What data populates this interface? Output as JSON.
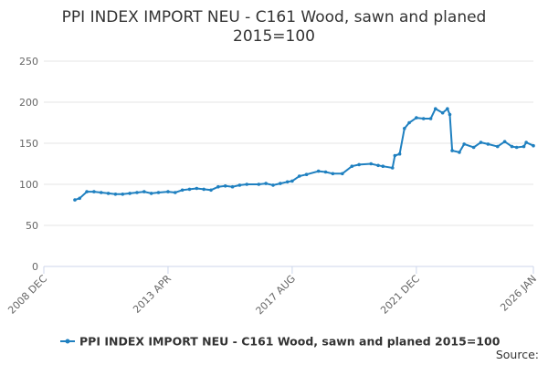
{
  "chart_data": {
    "type": "line",
    "title": "PPI INDEX IMPORT NEU - C161 Wood, sawn and planed",
    "subtitle": "2015=100",
    "source": "Source:",
    "x": [
      "2010-01",
      "2010-03",
      "2010-06",
      "2010-09",
      "2010-12",
      "2011-03",
      "2011-06",
      "2011-09",
      "2011-12",
      "2012-03",
      "2012-06",
      "2012-09",
      "2012-12",
      "2013-04",
      "2013-07",
      "2013-10",
      "2014-01",
      "2014-04",
      "2014-07",
      "2014-10",
      "2015-01",
      "2015-04",
      "2015-07",
      "2015-10",
      "2016-01",
      "2016-06",
      "2016-09",
      "2016-12",
      "2017-03",
      "2017-06",
      "2017-08",
      "2017-11",
      "2018-02",
      "2018-07",
      "2018-10",
      "2019-01",
      "2019-05",
      "2019-09",
      "2019-12",
      "2020-05",
      "2020-08",
      "2020-10",
      "2021-02",
      "2021-03",
      "2021-05",
      "2021-07",
      "2021-09",
      "2021-12",
      "2022-03",
      "2022-06",
      "2022-08",
      "2022-11",
      "2023-01",
      "2023-02",
      "2023-03",
      "2023-06",
      "2023-08",
      "2023-12",
      "2024-03",
      "2024-06",
      "2024-10",
      "2025-01",
      "2025-04",
      "2025-06",
      "2025-09",
      "2025-10",
      "2026-01"
    ],
    "series": [
      {
        "name": "PPI INDEX IMPORT NEU - C161 Wood, sawn and planed 2015=100",
        "color": "#1f80c0",
        "values": [
          81,
          83,
          91,
          91,
          90,
          89,
          88,
          88,
          89,
          90,
          91,
          89,
          90,
          91,
          90,
          93,
          94,
          95,
          94,
          93,
          97,
          98,
          97,
          99,
          100,
          100,
          101,
          99,
          101,
          103,
          104,
          110,
          112,
          116,
          115,
          113,
          113,
          122,
          124,
          125,
          123,
          122,
          120,
          135,
          137,
          168,
          175,
          181,
          180,
          180,
          192,
          187,
          192,
          185,
          141,
          139,
          149,
          145,
          151,
          149,
          146,
          152,
          146,
          145,
          146,
          151,
          147
        ]
      }
    ],
    "xlim": [
      "2008-12",
      "2026-01"
    ],
    "xticks": [
      {
        "value": "2008-12",
        "label": "2008 DEC"
      },
      {
        "value": "2013-04",
        "label": "2013 APR"
      },
      {
        "value": "2017-08",
        "label": "2017 AUG"
      },
      {
        "value": "2021-12",
        "label": "2021 DEC"
      },
      {
        "value": "2026-01",
        "label": "2026 JAN"
      }
    ],
    "ylim": [
      0,
      250
    ],
    "yticks": [
      0,
      50,
      100,
      150,
      200,
      250
    ],
    "grid": true,
    "legend": "bottom"
  }
}
